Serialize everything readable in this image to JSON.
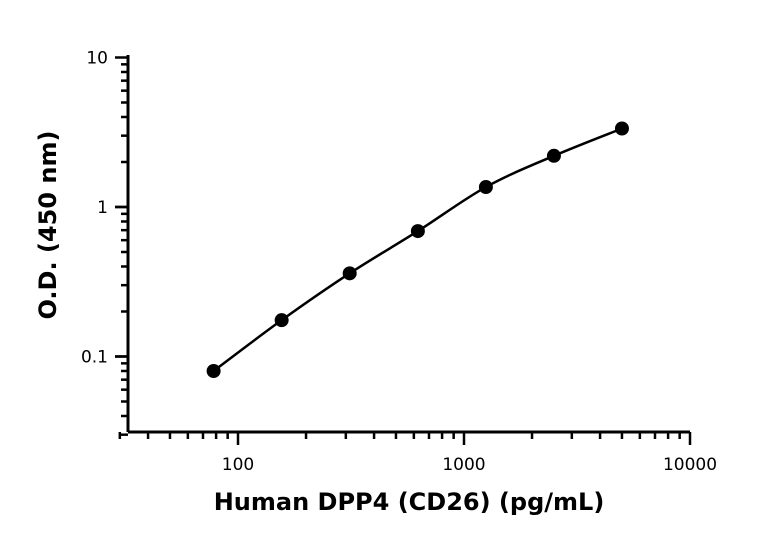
{
  "chart_data": {
    "type": "scatter",
    "title": "",
    "xlabel": "Human DPP4 (CD26) (pg/mL)",
    "ylabel": "O.D. (450 nm)",
    "xscale": "log",
    "yscale": "log",
    "xlim": [
      30,
      10000
    ],
    "ylim": [
      0.03,
      10
    ],
    "x_ticks": [
      100,
      1000,
      10000
    ],
    "x_tick_labels": [
      "100",
      "1000",
      "10000"
    ],
    "y_ticks": [
      0.1,
      1,
      10
    ],
    "y_tick_labels": [
      "0.1",
      "1",
      "10"
    ],
    "grid": false,
    "legend": "none",
    "fit_line": true,
    "series": [
      {
        "x": [
          78,
          156,
          312,
          625,
          1250,
          2500,
          5000
        ],
        "y": [
          0.08,
          0.175,
          0.36,
          0.69,
          1.36,
          2.2,
          3.35
        ]
      }
    ]
  }
}
